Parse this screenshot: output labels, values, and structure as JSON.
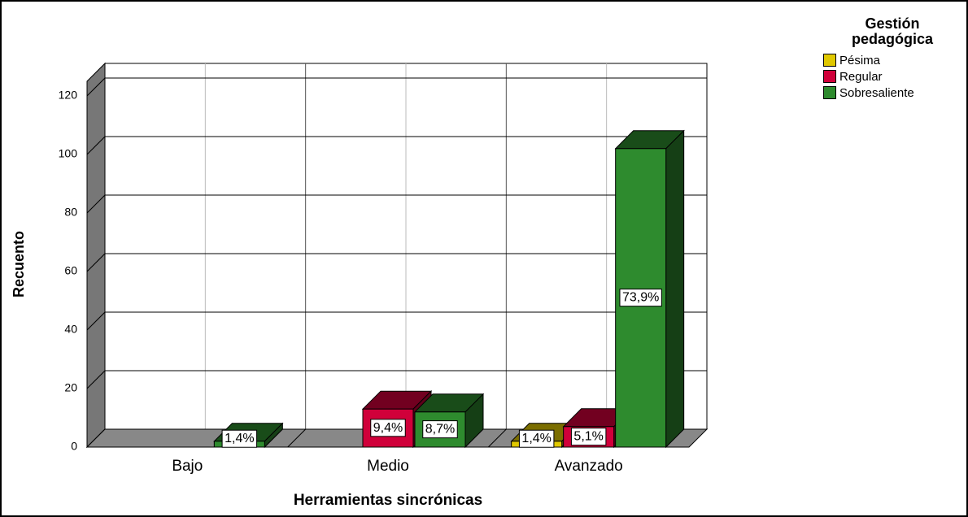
{
  "chart_data": {
    "type": "bar3d",
    "x_label": "Herramientas sincrónicas",
    "y_label": "Recuento",
    "legend_title": "Gestión pedagógica",
    "legend_position": "upper right",
    "categories": [
      "Bajo",
      "Medio",
      "Avanzado"
    ],
    "series": [
      {
        "name": "Pésima",
        "color": "#e0c800",
        "values": [
          null,
          null,
          2
        ],
        "value_labels": [
          null,
          null,
          "1,4%"
        ]
      },
      {
        "name": "Regular",
        "color": "#d0003a",
        "values": [
          null,
          13,
          7
        ],
        "value_labels": [
          null,
          "9,4%",
          "5,1%"
        ]
      },
      {
        "name": "Sobresaliente",
        "color": "#2e8b2e",
        "values": [
          2,
          12,
          102
        ],
        "value_labels": [
          "1,4%",
          "8,7%",
          "73,9%"
        ]
      }
    ],
    "ylim": [
      0,
      125
    ],
    "yticks": [
      0,
      20,
      40,
      60,
      80,
      100,
      120
    ],
    "grid": true
  }
}
